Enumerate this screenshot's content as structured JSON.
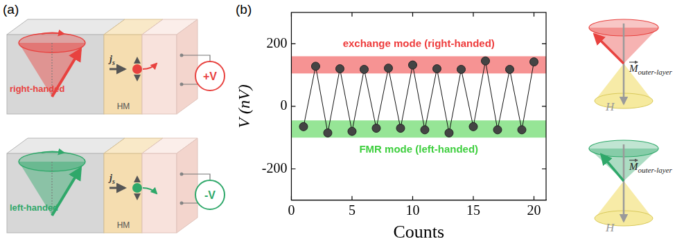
{
  "panel_labels": [
    "(a)",
    "(b)"
  ],
  "diagram_a": {
    "top": {
      "label": "right-handed",
      "current": "j",
      "current_sub": "s",
      "layer": "HM",
      "voltage": "+V",
      "color": "#e8423f"
    },
    "bottom": {
      "label": "left-handed",
      "current": "j",
      "current_sub": "s",
      "layer": "HM",
      "voltage": "-V",
      "color": "#2fa86a"
    }
  },
  "chart_data": {
    "type": "line",
    "x": [
      1,
      2,
      3,
      4,
      5,
      6,
      7,
      8,
      9,
      10,
      11,
      12,
      13,
      14,
      15,
      16,
      17,
      18,
      19,
      20
    ],
    "values": [
      -65,
      128,
      -85,
      120,
      -80,
      118,
      -70,
      122,
      -70,
      132,
      -75,
      120,
      -85,
      118,
      -65,
      145,
      -75,
      118,
      -75,
      142
    ],
    "color": "#444444",
    "marker": "circle",
    "xlabel": "Counts",
    "ylabel": "V (nV)",
    "xlim": [
      0,
      21
    ],
    "xticks": [
      0,
      5,
      10,
      15,
      20
    ],
    "ylim": [
      -300,
      300
    ],
    "yticks": [
      -200,
      0,
      200
    ],
    "grid": false,
    "bands": [
      {
        "label": "exchange mode (right-handed)",
        "range": [
          105,
          160
        ],
        "color": "#ee3b3b"
      },
      {
        "label": "FMR mode (left-handed)",
        "range": [
          -100,
          -45
        ],
        "color": "#3fcf3f"
      }
    ]
  },
  "diagram_b": {
    "top": {
      "moment": "M",
      "moment_sub": "outer-layer",
      "field": "H",
      "color": "#e8423f"
    },
    "bottom": {
      "moment": "M",
      "moment_sub": "outer-layer",
      "field": "H",
      "color": "#2fa86a"
    }
  }
}
